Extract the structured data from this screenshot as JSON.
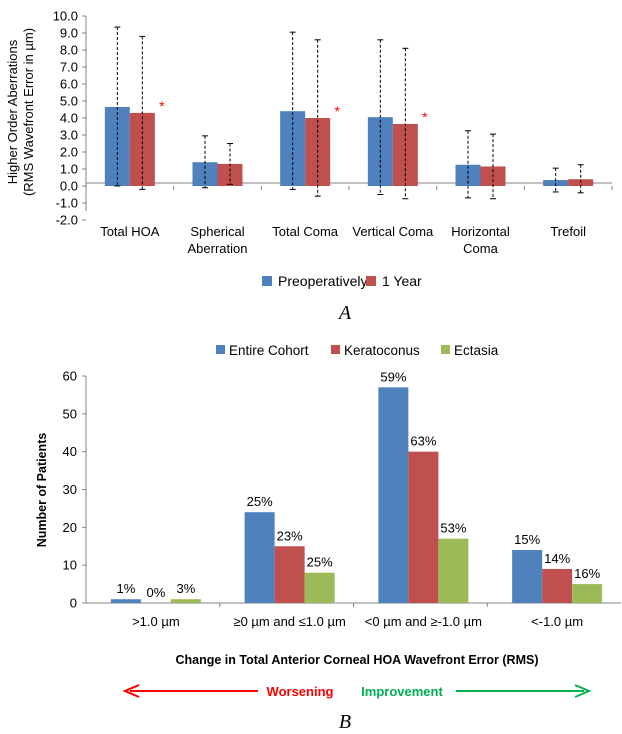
{
  "chart_data": [
    {
      "type": "bar",
      "panel_label": "A",
      "ylabel": "Higher Order Aberrations\n(RMS Wavefront Error in µm)",
      "ylim": [
        -2.0,
        10.0
      ],
      "yticks": [
        "10.0",
        "9.0",
        "8.0",
        "7.0",
        "6.0",
        "5.0",
        "4.0",
        "3.0",
        "2.0",
        "1.0",
        "0.0",
        "-1.0",
        "-2.0"
      ],
      "categories": [
        [
          "Total HOA"
        ],
        [
          "Spherical",
          "Aberration"
        ],
        [
          "Total Coma"
        ],
        [
          "Vertical Coma"
        ],
        [
          "Horizontal",
          "Coma"
        ],
        [
          "Trefoil"
        ]
      ],
      "series": [
        {
          "name": "Preoperatively",
          "color": "#4F81BD",
          "values": [
            4.65,
            1.4,
            4.4,
            4.05,
            1.25,
            0.35
          ],
          "error_high": [
            9.35,
            2.95,
            9.05,
            8.6,
            3.25,
            1.05
          ],
          "error_low": [
            0.0,
            -0.1,
            -0.2,
            -0.5,
            -0.7,
            -0.35
          ]
        },
        {
          "name": "1 Year",
          "color": "#C0504D",
          "values": [
            4.3,
            1.3,
            4.0,
            3.65,
            1.15,
            0.4
          ],
          "error_high": [
            8.8,
            2.5,
            8.6,
            8.1,
            3.05,
            1.25
          ],
          "error_low": [
            -0.2,
            0.1,
            -0.6,
            -0.75,
            -0.75,
            -0.4
          ]
        }
      ],
      "significance_marker": "*",
      "significant_categories": [
        0,
        2,
        3
      ],
      "grid": false,
      "legend_position": "bottom"
    },
    {
      "type": "bar",
      "panel_label": "B",
      "xlabel": "Change in Total Anterior Corneal HOA Wavefront Error (RMS)",
      "ylabel": "Number of Patients",
      "ylim": [
        0,
        60
      ],
      "yticks": [
        "0",
        "10",
        "20",
        "30",
        "40",
        "50",
        "60"
      ],
      "categories": [
        ">1.0 µm",
        "≥0 µm and ≤1.0 µm",
        "<0 µm and ≥-1.0 µm",
        "<-1.0 µm"
      ],
      "series": [
        {
          "name": "Entire Cohort",
          "color": "#4F81BD",
          "values": [
            1,
            24,
            57,
            14
          ],
          "labels": [
            "1%",
            "25%",
            "59%",
            "15%"
          ]
        },
        {
          "name": "Keratoconus",
          "color": "#C0504D",
          "values": [
            0,
            15,
            40,
            9
          ],
          "labels": [
            "0%",
            "23%",
            "63%",
            "14%"
          ]
        },
        {
          "name": "Ectasia",
          "color": "#9BBB59",
          "values": [
            1,
            8,
            17,
            5
          ],
          "labels": [
            "3%",
            "25%",
            "53%",
            "16%"
          ]
        }
      ],
      "grid": false,
      "legend_position": "top",
      "annotations": {
        "worsening": {
          "text": "Worsening",
          "color": "#FF0000"
        },
        "improvement": {
          "text": "Improvement",
          "color": "#00B050"
        }
      }
    }
  ]
}
